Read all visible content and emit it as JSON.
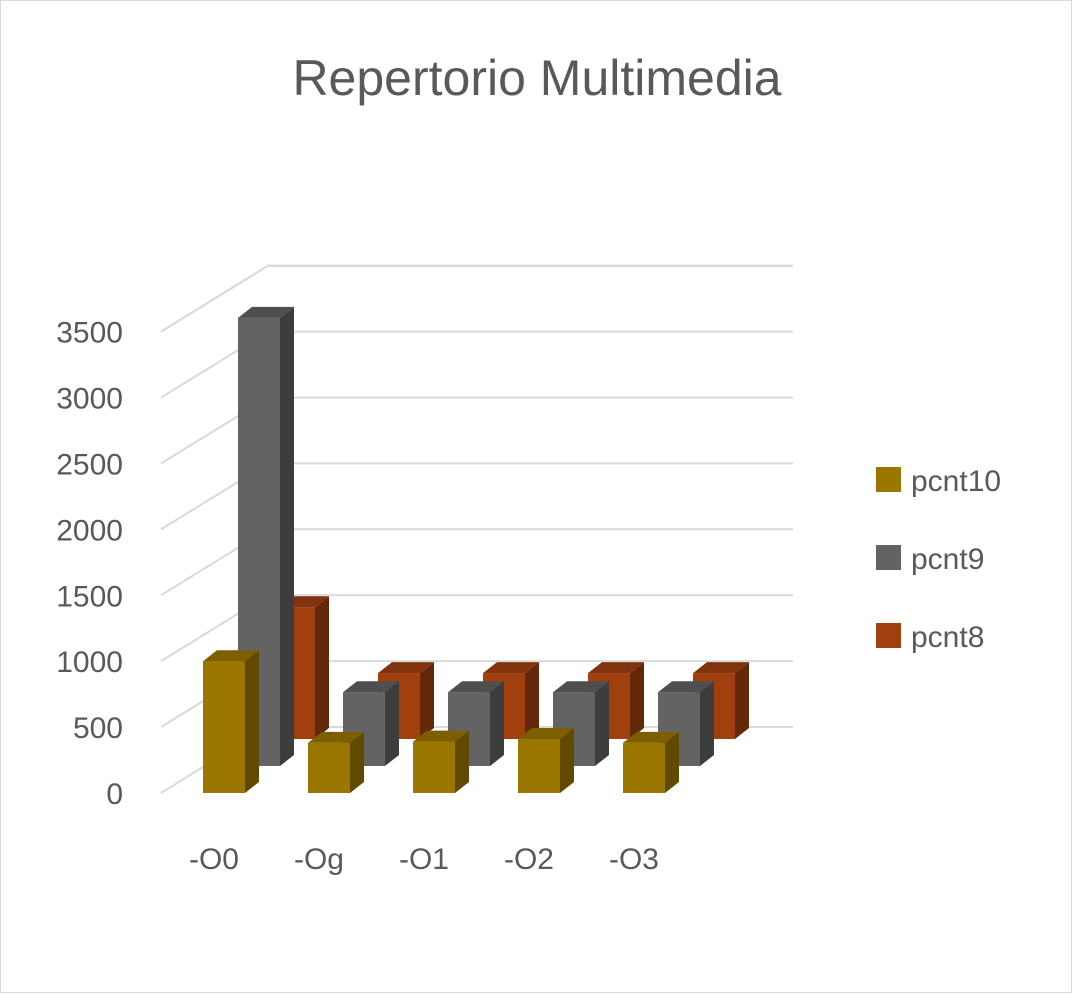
{
  "chart_data": {
    "type": "bar",
    "title": "Repertorio Multimedia",
    "categories": [
      "-O0",
      "-Og",
      "-O1",
      "-O2",
      "-O3"
    ],
    "series": [
      {
        "name": "pcnt10",
        "values": [
          1000,
          380,
          390,
          410,
          380
        ],
        "color": "#9C7700"
      },
      {
        "name": "pcnt9",
        "values": [
          3400,
          560,
          560,
          560,
          560
        ],
        "color": "#636363"
      },
      {
        "name": "pcnt8",
        "values": [
          1000,
          500,
          500,
          500,
          500
        ],
        "color": "#A0400F"
      }
    ],
    "yticks": [
      "0",
      "500",
      "1000",
      "1500",
      "2000",
      "2500",
      "3000",
      "3500"
    ],
    "ylim": [
      0,
      3500
    ],
    "grid": true,
    "legend": "right",
    "style": "3d-clustered-column"
  }
}
